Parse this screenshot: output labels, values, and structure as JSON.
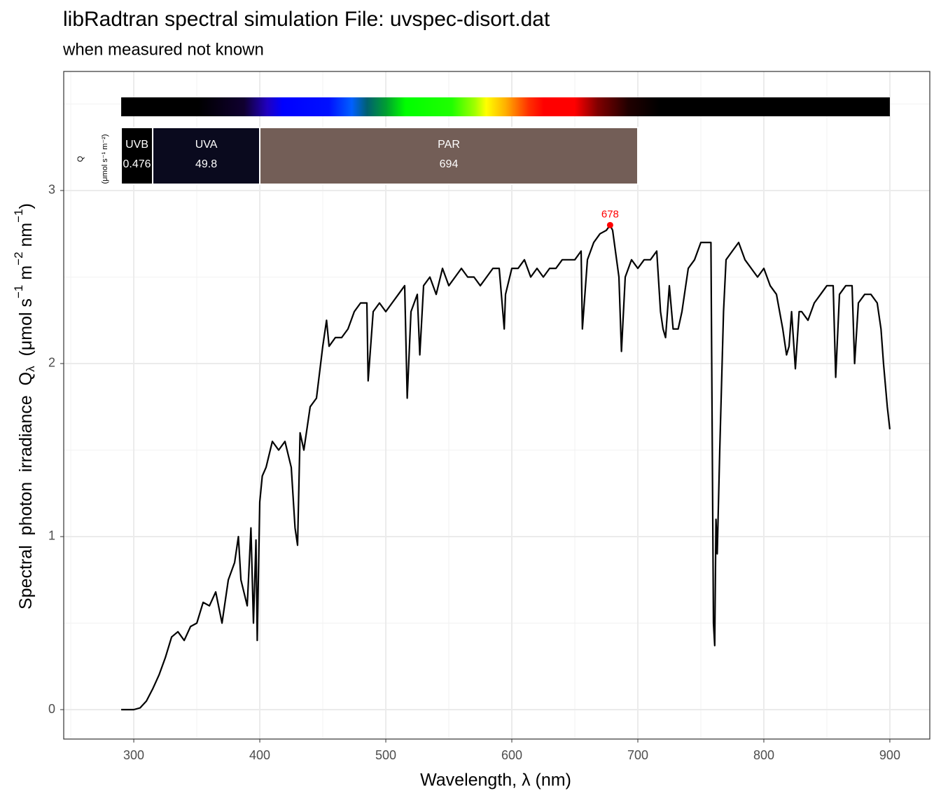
{
  "chart_data": {
    "type": "line",
    "title": "libRadtran spectral simulation File: uvspec-disort.dat",
    "subtitle": "when measured not known",
    "x_label": "Wavelength, λ (nm)",
    "y_label_parts": [
      "Spectral  photon  irradiance  Q",
      "λ",
      "  (μmol s",
      "−1",
      " m",
      "−2",
      " nm",
      "−1",
      ")"
    ],
    "band_axis_label": [
      "Q",
      "(μmol s⁻¹ m⁻²)"
    ],
    "bands": [
      {
        "name": "UVB",
        "value": 0.476,
        "xmin": 290,
        "xmax": 315,
        "color": "#000000"
      },
      {
        "name": "UVA",
        "value": 49.8,
        "xmin": 315,
        "xmax": 400,
        "color": "#0a0a1e"
      },
      {
        "name": "PAR",
        "value": 694,
        "xmin": 400,
        "xmax": 700,
        "color": "#735e57"
      }
    ],
    "peak": {
      "x": 678,
      "y": 2.8,
      "color": "#ff0000"
    },
    "color": "#000000",
    "x": [
      290,
      295,
      300,
      305,
      310,
      315,
      320,
      325,
      330,
      335,
      340,
      345,
      350,
      355,
      360,
      365,
      370,
      375,
      380,
      383,
      385,
      390,
      393,
      395,
      397,
      398,
      400,
      402,
      405,
      410,
      415,
      420,
      425,
      428,
      430,
      432,
      435,
      440,
      445,
      450,
      453,
      455,
      460,
      465,
      470,
      475,
      480,
      485,
      486,
      490,
      495,
      500,
      505,
      510,
      515,
      517,
      520,
      525,
      527,
      530,
      535,
      540,
      545,
      550,
      555,
      560,
      565,
      570,
      575,
      580,
      585,
      590,
      594,
      595,
      600,
      605,
      610,
      615,
      620,
      625,
      630,
      635,
      640,
      645,
      650,
      655,
      656,
      660,
      665,
      670,
      675,
      678,
      680,
      685,
      687,
      690,
      695,
      700,
      705,
      710,
      715,
      718,
      720,
      722,
      725,
      728,
      732,
      735,
      740,
      745,
      750,
      755,
      758,
      760,
      761,
      762,
      763,
      765,
      768,
      770,
      775,
      780,
      785,
      790,
      795,
      800,
      805,
      810,
      815,
      818,
      820,
      822,
      825,
      828,
      830,
      835,
      840,
      845,
      850,
      855,
      857,
      860,
      865,
      870,
      872,
      875,
      880,
      885,
      890,
      893,
      895,
      898,
      900
    ],
    "values": [
      0,
      0,
      0,
      0.01,
      0.05,
      0.12,
      0.2,
      0.3,
      0.42,
      0.45,
      0.4,
      0.48,
      0.5,
      0.62,
      0.6,
      0.68,
      0.5,
      0.75,
      0.85,
      1.0,
      0.75,
      0.6,
      1.05,
      0.5,
      0.98,
      0.4,
      1.2,
      1.35,
      1.4,
      1.55,
      1.5,
      1.55,
      1.4,
      1.05,
      0.95,
      1.6,
      1.5,
      1.75,
      1.8,
      2.1,
      2.25,
      2.1,
      2.15,
      2.15,
      2.2,
      2.3,
      2.35,
      2.35,
      1.9,
      2.3,
      2.35,
      2.3,
      2.35,
      2.4,
      2.45,
      1.8,
      2.3,
      2.4,
      2.05,
      2.45,
      2.5,
      2.4,
      2.55,
      2.45,
      2.5,
      2.55,
      2.5,
      2.5,
      2.45,
      2.5,
      2.55,
      2.55,
      2.2,
      2.4,
      2.55,
      2.55,
      2.6,
      2.5,
      2.55,
      2.5,
      2.55,
      2.55,
      2.6,
      2.6,
      2.6,
      2.65,
      2.2,
      2.6,
      2.7,
      2.75,
      2.77,
      2.8,
      2.77,
      2.5,
      2.07,
      2.5,
      2.6,
      2.55,
      2.6,
      2.6,
      2.65,
      2.3,
      2.2,
      2.15,
      2.45,
      2.2,
      2.2,
      2.3,
      2.55,
      2.6,
      2.7,
      2.7,
      2.7,
      0.5,
      0.37,
      1.1,
      0.9,
      1.5,
      2.3,
      2.6,
      2.65,
      2.7,
      2.6,
      2.55,
      2.5,
      2.55,
      2.45,
      2.4,
      2.2,
      2.05,
      2.1,
      2.3,
      1.97,
      2.3,
      2.3,
      2.25,
      2.35,
      2.4,
      2.45,
      2.45,
      1.92,
      2.4,
      2.45,
      2.45,
      2.0,
      2.35,
      2.4,
      2.4,
      2.35,
      2.2,
      2.0,
      1.75,
      1.62
    ],
    "xlim": [
      244.4,
      931.7
    ],
    "ylim": [
      -0.17,
      3.688
    ],
    "xticks": [
      300,
      400,
      500,
      600,
      700,
      800,
      900
    ],
    "yticks": [
      0,
      1,
      2,
      3
    ],
    "x_minor_grid": [
      250,
      350,
      450,
      550,
      650,
      750,
      850
    ],
    "y_minor_grid": [
      0.5,
      1.5,
      2.5,
      3.5
    ],
    "grid": true
  }
}
